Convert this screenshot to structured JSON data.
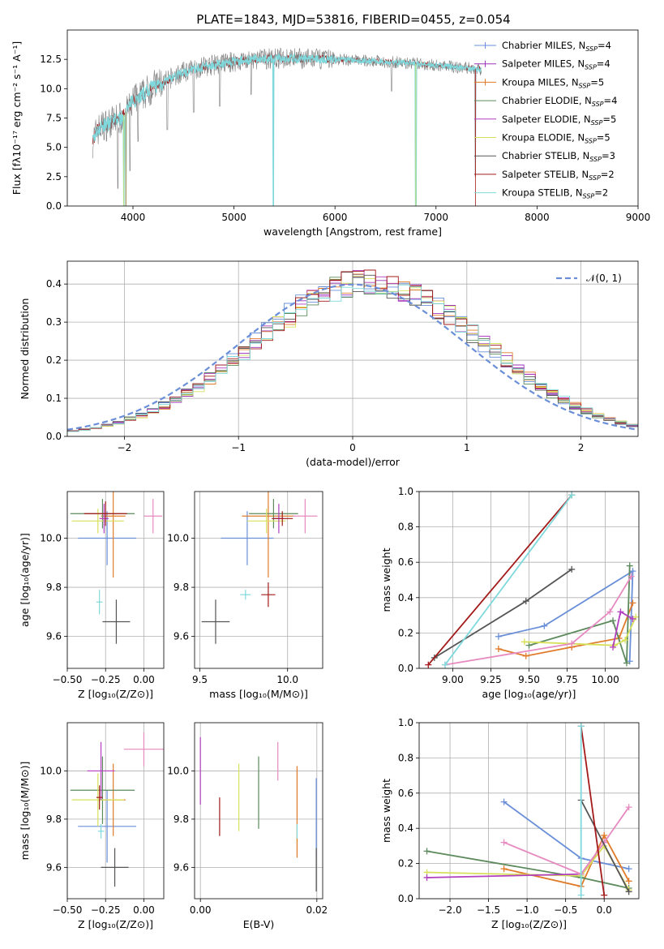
{
  "title": "PLATE=1843, MJD=53816, FIBERID=0455, z=0.054",
  "colors": {
    "Chabrier MILES": "#6a8fd8",
    "Salpeter MILES": "#9b33b8",
    "Kroupa MILES": "#e07b2a",
    "Chabrier ELODIE": "#5c8a5c",
    "Salpeter ELODIE": "#b23fbf",
    "Kroupa ELODIE": "#d7e05a",
    "Chabrier STELIB": "#555555",
    "Salpeter STELIB": "#a31a1a",
    "Kroupa STELIB": "#7fd9dc",
    "pink": "#e68ac0",
    "normal": "#6a8fd8",
    "grid": "#b0b0b0",
    "data": "#808080"
  },
  "chart_data": [
    {
      "id": "spectrum",
      "type": "line",
      "title": "PLATE=1843, MJD=53816, FIBERID=0455, z=0.054",
      "xlabel": "wavelength [Angstrom, rest frame]",
      "ylabel": "Flux [fλ10⁻¹⁷ erg cm⁻² s⁻¹ A⁻¹]",
      "xlim": [
        3350,
        9000
      ],
      "ylim": [
        0,
        15
      ],
      "xticks": [
        4000,
        5000,
        6000,
        7000,
        8000,
        9000
      ],
      "yticks": [
        0.0,
        2.5,
        5.0,
        7.5,
        10.0,
        12.5
      ],
      "xticklabels": [
        "4000",
        "5000",
        "6000",
        "7000",
        "8000",
        "9000"
      ],
      "yticklabels": [
        "0.0",
        "2.5",
        "5.0",
        "7.5",
        "10.0",
        "12.5"
      ],
      "grid": false,
      "legend_position": "right",
      "legend": [
        "Chabrier MILES, N_SSP=4",
        "Salpeter MILES, N_SSP=4",
        "Kroupa MILES, N_SSP=5",
        "Chabrier ELODIE, N_SSP=4",
        "Salpeter ELODIE, N_SSP=5",
        "Kroupa ELODIE, N_SSP=5",
        "Chabrier STELIB, N_SSP=3",
        "Salpeter STELIB, N_SSP=2",
        "Kroupa STELIB, N_SSP=2"
      ],
      "anchors": [
        [
          3600,
          5.5
        ],
        [
          3650,
          6.5
        ],
        [
          3700,
          6.8
        ],
        [
          3800,
          7.2
        ],
        [
          3900,
          7.6
        ],
        [
          3950,
          8.3
        ],
        [
          4000,
          9.0
        ],
        [
          4100,
          9.5
        ],
        [
          4200,
          10.2
        ],
        [
          4300,
          10.5
        ],
        [
          4400,
          11.0
        ],
        [
          4500,
          11.4
        ],
        [
          4700,
          11.9
        ],
        [
          5000,
          12.3
        ],
        [
          5200,
          12.5
        ],
        [
          5500,
          12.6
        ],
        [
          6000,
          12.5
        ],
        [
          6500,
          12.3
        ],
        [
          7000,
          12.0
        ],
        [
          7500,
          11.6
        ],
        [
          7600,
          11.6
        ],
        [
          8000,
          11.3
        ],
        [
          8500,
          11.1
        ],
        [
          9000,
          11.0
        ]
      ],
      "noise": 0.9,
      "spikes": [
        [
          3850,
          1.5
        ],
        [
          3910,
          0.0
        ],
        [
          3930,
          0.0
        ],
        [
          3970,
          3.0
        ],
        [
          4050,
          5.5
        ],
        [
          4340,
          6.5
        ],
        [
          4600,
          8.0
        ],
        [
          4860,
          8.5
        ],
        [
          5170,
          9.5
        ],
        [
          5390,
          0.0
        ],
        [
          6560,
          9.8
        ],
        [
          6800,
          0.0
        ],
        [
          7390,
          2.5
        ]
      ]
    },
    {
      "id": "residuals",
      "type": "bar",
      "xlabel": "(data-model)/error",
      "ylabel": "Normed distribution",
      "xlim": [
        -2.5,
        2.5
      ],
      "ylim": [
        0,
        0.46
      ],
      "xticks": [
        -2,
        -1,
        0,
        1,
        2
      ],
      "yticks": [
        0.0,
        0.1,
        0.2,
        0.3,
        0.4
      ],
      "xticklabels": [
        "−2",
        "−1",
        "0",
        "1",
        "2"
      ],
      "yticklabels": [
        "0.0",
        "0.1",
        "0.2",
        "0.3",
        "0.4"
      ],
      "grid": true,
      "legend_position": "top-right",
      "legend": [
        "𝒩(0, 1)"
      ],
      "bin_width": 0.1,
      "n_histograms": 9
    },
    {
      "id": "age-Z",
      "type": "scatter",
      "xlabel": "Z [log₁₀(Z/Z⊙)]",
      "ylabel": "age  [log₁₀(age/yr)]",
      "xlim": [
        -0.5,
        0.13
      ],
      "ylim": [
        9.47,
        10.19
      ],
      "xticks": [
        -0.5,
        -0.25,
        0.0
      ],
      "yticks": [
        9.6,
        9.8,
        10.0
      ],
      "xticklabels": [
        "−0.50",
        "−0.25",
        "0.00"
      ],
      "yticklabels": [
        "9.6",
        "9.8",
        "10.0"
      ],
      "grid": true,
      "points": [
        {
          "name": "Chabrier MILES",
          "x": -0.24,
          "y": 10.0,
          "xerr": 0.19,
          "yerr": 0.11
        },
        {
          "name": "Kroupa MILES",
          "x": -0.2,
          "y": 10.09,
          "xerr": 0.08,
          "yerr": 0.25
        },
        {
          "name": "Chabrier ELODIE",
          "x": -0.27,
          "y": 10.1,
          "xerr": 0.21,
          "yerr": 0.06
        },
        {
          "name": "Kroupa ELODIE",
          "x": -0.3,
          "y": 10.07,
          "xerr": 0.17,
          "yerr": 0.05
        },
        {
          "name": "Salpeter ELODIE",
          "x": -0.26,
          "y": 10.08,
          "xerr": 0.03,
          "yerr": 0.06
        },
        {
          "name": "Salpeter STELIB",
          "x": -0.25,
          "y": 10.1,
          "xerr": 0.14,
          "yerr": 0.05
        },
        {
          "name": "pink",
          "x": 0.06,
          "y": 10.09,
          "xerr": 0.06,
          "yerr": 0.07
        },
        {
          "name": "Kroupa STELIB",
          "x": -0.29,
          "y": 9.74,
          "xerr": 0.02,
          "yerr": 0.05
        },
        {
          "name": "Chabrier STELIB",
          "x": -0.18,
          "y": 9.66,
          "xerr": 0.09,
          "yerr": 0.09
        }
      ]
    },
    {
      "id": "age-mass",
      "type": "scatter",
      "xlabel": "mass [log₁₀(M/M⊙)]",
      "ylabel": "",
      "xlim": [
        9.47,
        10.2
      ],
      "ylim": [
        9.47,
        10.19
      ],
      "xticks": [
        9.5,
        10.0
      ],
      "yticks": [
        9.6,
        9.8,
        10.0
      ],
      "xticklabels": [
        "9.5",
        "10.0"
      ],
      "yticklabels": [
        "9.6",
        "9.8",
        "10.0"
      ],
      "grid": true,
      "points": [
        {
          "name": "Chabrier MILES",
          "x": 9.77,
          "y": 10.0,
          "xerr": 0.15,
          "yerr": 0.11
        },
        {
          "name": "Kroupa MILES",
          "x": 9.89,
          "y": 10.09,
          "xerr": 0.15,
          "yerr": 0.25
        },
        {
          "name": "Chabrier ELODIE",
          "x": 9.92,
          "y": 10.1,
          "xerr": 0.14,
          "yerr": 0.06
        },
        {
          "name": "Kroupa ELODIE",
          "x": 9.88,
          "y": 10.07,
          "xerr": 0.11,
          "yerr": 0.05
        },
        {
          "name": "Salpeter ELODIE",
          "x": 9.95,
          "y": 10.08,
          "xerr": 0.03,
          "yerr": 0.06
        },
        {
          "name": "Salpeter STELIB",
          "x": 9.97,
          "y": 10.08,
          "xerr": 0.06,
          "yerr": 0.03
        },
        {
          "name": "pink",
          "x": 10.1,
          "y": 10.09,
          "xerr": 0.07,
          "yerr": 0.07
        },
        {
          "name": "Kroupa STELIB",
          "x": 9.76,
          "y": 9.77,
          "xerr": 0.03,
          "yerr": 0.02
        },
        {
          "name": "Salpeter STELIB",
          "x": 9.89,
          "y": 9.77,
          "xerr": 0.04,
          "yerr": 0.05
        },
        {
          "name": "Chabrier STELIB",
          "x": 9.59,
          "y": 9.66,
          "xerr": 0.08,
          "yerr": 0.09
        }
      ]
    },
    {
      "id": "weight-age",
      "type": "line",
      "xlabel": "age  [log₁₀(age/yr)]",
      "ylabel": "mass weight",
      "xlim": [
        8.78,
        10.22
      ],
      "ylim": [
        0,
        1.0
      ],
      "xticks": [
        9.0,
        9.25,
        9.5,
        9.75,
        10.0
      ],
      "yticks": [
        0.0,
        0.2,
        0.4,
        0.6,
        0.8,
        1.0
      ],
      "xticklabels": [
        "9.00",
        "9.25",
        "9.50",
        "9.75",
        "10.00"
      ],
      "yticklabels": [
        "0.0",
        "0.2",
        "0.4",
        "0.6",
        "0.8",
        "1.0"
      ],
      "grid": true,
      "series": [
        {
          "name": "Chabrier MILES",
          "x": [
            9.3,
            9.6,
            10.18,
            10.16
          ],
          "y": [
            0.18,
            0.24,
            0.55,
            0.04
          ]
        },
        {
          "name": "Kroupa MILES",
          "x": [
            9.3,
            9.48,
            9.78,
            10.09,
            10.18
          ],
          "y": [
            0.11,
            0.07,
            0.12,
            0.17,
            0.37
          ]
        },
        {
          "name": "Chabrier ELODIE",
          "x": [
            9.5,
            10.05,
            10.14,
            10.16
          ],
          "y": [
            0.13,
            0.27,
            0.03,
            0.58
          ]
        },
        {
          "name": "Kroupa ELODIE",
          "x": [
            9.47,
            10.06,
            10.13,
            10.2
          ],
          "y": [
            0.15,
            0.13,
            0.16,
            0.29
          ]
        },
        {
          "name": "Salpeter ELODIE",
          "x": [
            10.05,
            10.1,
            10.18
          ],
          "y": [
            0.12,
            0.32,
            0.28
          ]
        },
        {
          "name": "pink",
          "x": [
            8.95,
            9.78,
            10.03,
            10.17
          ],
          "y": [
            0.02,
            0.14,
            0.32,
            0.52
          ]
        },
        {
          "name": "Chabrier STELIB",
          "x": [
            8.88,
            9.48,
            9.78
          ],
          "y": [
            0.06,
            0.38,
            0.56
          ]
        },
        {
          "name": "Salpeter STELIB",
          "x": [
            8.84,
            9.78
          ],
          "y": [
            0.02,
            0.98
          ]
        },
        {
          "name": "Kroupa STELIB",
          "x": [
            8.95,
            9.78
          ],
          "y": [
            0.02,
            0.98
          ]
        }
      ]
    },
    {
      "id": "mass-Z",
      "type": "scatter",
      "xlabel": "Z [log₁₀(Z/Z⊙)]",
      "ylabel": "mass [log₁₀(M/M⊙)]",
      "xlim": [
        -0.5,
        0.13
      ],
      "ylim": [
        9.47,
        10.2
      ],
      "xticks": [
        -0.5,
        -0.25,
        0.0
      ],
      "yticks": [
        9.6,
        9.8,
        10.0
      ],
      "xticklabels": [
        "−0.50",
        "−0.25",
        "0.00"
      ],
      "yticklabels": [
        "9.6",
        "9.8",
        "10.0"
      ],
      "grid": true,
      "points": [
        {
          "name": "Chabrier MILES",
          "x": -0.24,
          "y": 9.77,
          "xerr": 0.19,
          "yerr": 0.15
        },
        {
          "name": "Kroupa MILES",
          "x": -0.2,
          "y": 9.88,
          "xerr": 0.08,
          "yerr": 0.15
        },
        {
          "name": "Chabrier ELODIE",
          "x": -0.27,
          "y": 9.92,
          "xerr": 0.21,
          "yerr": 0.14
        },
        {
          "name": "Kroupa ELODIE",
          "x": -0.3,
          "y": 9.88,
          "xerr": 0.17,
          "yerr": 0.11
        },
        {
          "name": "Salpeter ELODIE",
          "x": -0.28,
          "y": 10.0,
          "xerr": 0.09,
          "yerr": 0.12
        },
        {
          "name": "Salpeter STELIB",
          "x": -0.29,
          "y": 9.89,
          "xerr": 0.02,
          "yerr": 0.05
        },
        {
          "name": "pink",
          "x": 0.0,
          "y": 10.09,
          "xerr": 0.13,
          "yerr": 0.07
        },
        {
          "name": "Kroupa STELIB",
          "x": -0.28,
          "y": 9.75,
          "xerr": 0.02,
          "yerr": 0.03
        },
        {
          "name": "Chabrier STELIB",
          "x": -0.19,
          "y": 9.6,
          "xerr": 0.09,
          "yerr": 0.08
        }
      ]
    },
    {
      "id": "mass-EBV",
      "type": "scatter",
      "xlabel": "E(B-V)",
      "ylabel": "",
      "xlim": [
        -0.001,
        0.021
      ],
      "ylim": [
        9.47,
        10.2
      ],
      "xticks": [
        0.0,
        0.02
      ],
      "yticks": [
        9.6,
        9.8,
        10.0
      ],
      "xticklabels": [
        "0.00",
        "0.02"
      ],
      "yticklabels": [
        "9.6",
        "9.8",
        "10.0"
      ],
      "grid": true,
      "points": [
        {
          "name": "Salpeter ELODIE",
          "x": 0.0,
          "y": 10.0,
          "xerr": 0,
          "yerr": 0.14
        },
        {
          "name": "Salpeter STELIB",
          "x": 0.0033,
          "y": 9.81,
          "xerr": 0,
          "yerr": 0.08
        },
        {
          "name": "Kroupa ELODIE",
          "x": 0.0066,
          "y": 9.89,
          "xerr": 0,
          "yerr": 0.14
        },
        {
          "name": "Chabrier ELODIE",
          "x": 0.01,
          "y": 9.91,
          "xerr": 0,
          "yerr": 0.15
        },
        {
          "name": "pink",
          "x": 0.0133,
          "y": 10.04,
          "xerr": 0,
          "yerr": 0.08
        },
        {
          "name": "Kroupa MILES",
          "x": 0.0166,
          "y": 9.83,
          "xerr": 0,
          "yerr": 0.19
        },
        {
          "name": "Chabrier MILES",
          "x": 0.0199,
          "y": 9.81,
          "xerr": 0,
          "yerr": 0.16
        },
        {
          "name": "Chabrier STELIB",
          "x": 0.0199,
          "y": 9.59,
          "xerr": 0,
          "yerr": 0.09
        },
        {
          "name": "Kroupa STELIB",
          "x": 0.0166,
          "y": 9.75,
          "xerr": 0,
          "yerr": 0.03
        }
      ]
    },
    {
      "id": "weight-Z",
      "type": "line",
      "xlabel": "Z [log₁₀(Z/Z⊙)]",
      "ylabel": "mass weight",
      "xlim": [
        -2.4,
        0.45
      ],
      "ylim": [
        0,
        1.0
      ],
      "xticks": [
        -2.0,
        -1.5,
        -1.0,
        -0.5,
        0.0
      ],
      "yticks": [
        0.0,
        0.2,
        0.4,
        0.6,
        0.8,
        1.0
      ],
      "xticklabels": [
        "−2.0",
        "−1.5",
        "−1.0",
        "−0.5",
        "0.0"
      ],
      "yticklabels": [
        "0.0",
        "0.2",
        "0.4",
        "0.6",
        "0.8",
        "1.0"
      ],
      "grid": true,
      "series": [
        {
          "name": "Chabrier MILES",
          "x": [
            -1.3,
            -0.3,
            0.32
          ],
          "y": [
            0.55,
            0.23,
            0.17
          ]
        },
        {
          "name": "Kroupa MILES",
          "x": [
            -1.3,
            -0.3,
            0.0,
            0.32
          ],
          "y": [
            0.17,
            0.07,
            0.36,
            0.1
          ]
        },
        {
          "name": "Chabrier ELODIE",
          "x": [
            -2.3,
            -0.3,
            0.32
          ],
          "y": [
            0.27,
            0.12,
            0.06
          ]
        },
        {
          "name": "Kroupa ELODIE",
          "x": [
            -2.3,
            -0.3,
            0.0,
            0.32
          ],
          "y": [
            0.15,
            0.13,
            0.3,
            0.05
          ]
        },
        {
          "name": "Salpeter ELODIE",
          "x": [
            -2.3,
            -0.3,
            0.0
          ],
          "y": [
            0.12,
            0.14,
            0.32
          ]
        },
        {
          "name": "pink",
          "x": [
            -1.3,
            -0.3,
            0.0,
            0.32
          ],
          "y": [
            0.32,
            0.14,
            0.32,
            0.52
          ]
        },
        {
          "name": "Chabrier STELIB",
          "x": [
            -0.3,
            0.32
          ],
          "y": [
            0.56,
            0.04
          ]
        },
        {
          "name": "Salpeter STELIB",
          "x": [
            -0.3,
            0.0
          ],
          "y": [
            0.98,
            0.02
          ]
        },
        {
          "name": "Kroupa STELIB",
          "x": [
            -0.3,
            -0.3
          ],
          "y": [
            0.98,
            0.02
          ]
        }
      ]
    }
  ]
}
